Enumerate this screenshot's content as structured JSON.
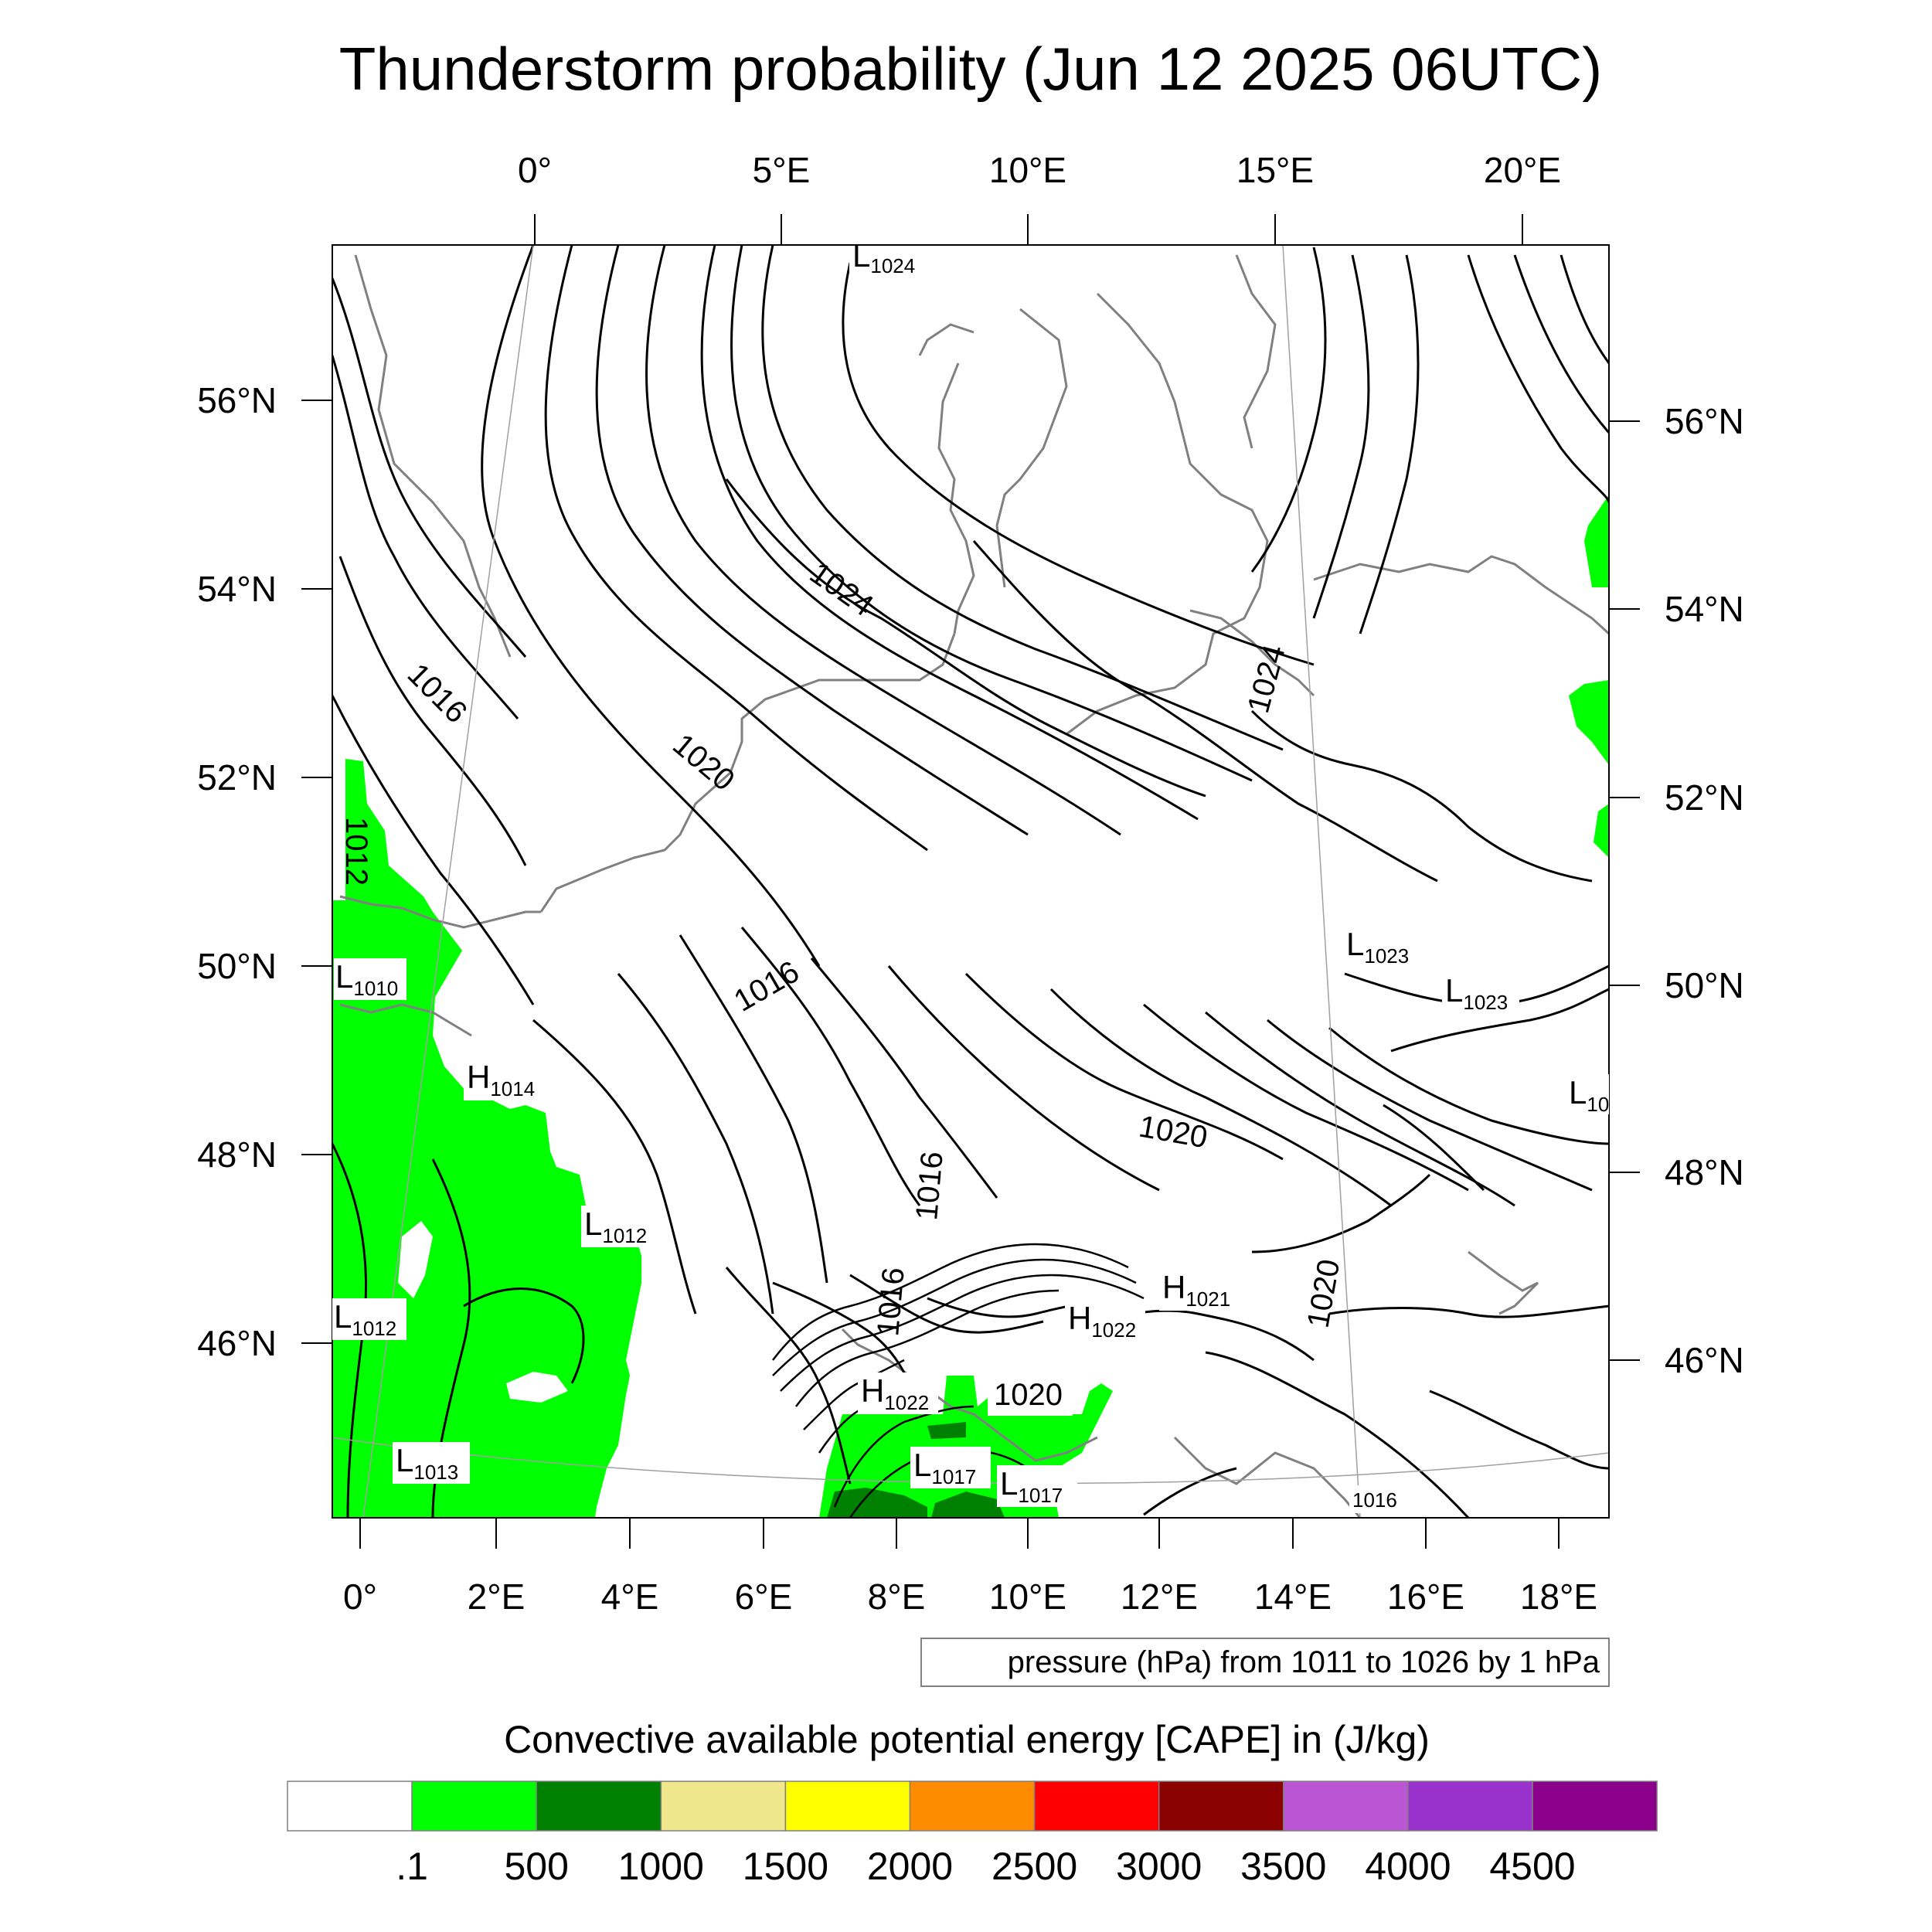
{
  "title": "Thunderstorm probability (Jun 12 2025 06UTC)",
  "top_lon_ticks": [
    "0°",
    "5°E",
    "10°E",
    "15°E",
    "20°E"
  ],
  "bottom_lon_ticks": [
    "0°",
    "2°E",
    "4°E",
    "6°E",
    "8°E",
    "10°E",
    "12°E",
    "14°E",
    "16°E",
    "18°E"
  ],
  "left_lat_ticks": [
    "56°N",
    "54°N",
    "52°N",
    "50°N",
    "48°N",
    "46°N"
  ],
  "right_lat_ticks": [
    "56°N",
    "54°N",
    "52°N",
    "50°N",
    "48°N",
    "46°N"
  ],
  "contour_labels": [
    "1024",
    "1024",
    "1016",
    "1020",
    "1012",
    "1016",
    "1020",
    "1016",
    "1016",
    "1020",
    "1020"
  ],
  "pressure_centers": [
    {
      "letter": "L",
      "value": "1024"
    },
    {
      "letter": "L",
      "value": "1023"
    },
    {
      "letter": "L",
      "value": "1023"
    },
    {
      "letter": "L",
      "value": "10"
    },
    {
      "letter": "L",
      "value": "1010"
    },
    {
      "letter": "H",
      "value": "1014"
    },
    {
      "letter": "L",
      "value": "1012"
    },
    {
      "letter": "L",
      "value": "1012"
    },
    {
      "letter": "L",
      "value": "1013"
    },
    {
      "letter": "H",
      "value": "1021"
    },
    {
      "letter": "H",
      "value": "1022"
    },
    {
      "letter": "H",
      "value": "1022"
    },
    {
      "letter": "L",
      "value": "1017"
    },
    {
      "letter": "L",
      "value": "1017"
    },
    {
      "letter": "",
      "value": "1016"
    }
  ],
  "inline_label": "1020",
  "contour_note": "pressure (hPa) from 1011 to 1026 by 1 hPa",
  "colorbar": {
    "title": "Convective available potential energy [CAPE] in (J/kg)",
    "labels": [
      ".1",
      "500",
      "1000",
      "1500",
      "2000",
      "2500",
      "3000",
      "3500",
      "4000",
      "4500"
    ],
    "colors": [
      "#ffffff",
      "#00ff00",
      "#008000",
      "#f0e68c",
      "#ffff00",
      "#ff8c00",
      "#ff0000",
      "#8b0000",
      "#ba55d3",
      "#9932cc",
      "#8b008b"
    ]
  }
}
